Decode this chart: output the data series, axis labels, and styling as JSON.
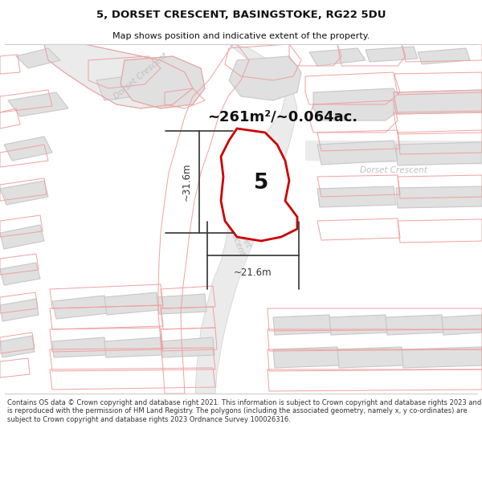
{
  "title_line1": "5, DORSET CRESCENT, BASINGSTOKE, RG22 5DU",
  "title_line2": "Map shows position and indicative extent of the property.",
  "area_text": "~261m²/~0.064ac.",
  "dim_width": "~21.6m",
  "dim_height": "~31.6m",
  "property_label": "5",
  "footer_text": "Contains OS data © Crown copyright and database right 2021. This information is subject to Crown copyright and database rights 2023 and is reproduced with the permission of HM Land Registry. The polygons (including the associated geometry, namely x, y co-ordinates) are subject to Crown copyright and database rights 2023 Ordnance Survey 100026316.",
  "bg_color": "#ffffff",
  "map_bg": "#f5f5f5",
  "building_fill": "#e0e0e0",
  "building_edge": "#c8c8c8",
  "road_fill": "#eeeeee",
  "road_edge": "#d0d0d0",
  "pink_edge": "#f0a0a0",
  "red_edge": "#cc0000",
  "highlight_fill": "#ffffff",
  "road_label_color": "#c0c0c0",
  "dim_color": "#333333",
  "title_color": "#111111",
  "footer_color": "#333333",
  "separator_color": "#cccccc"
}
